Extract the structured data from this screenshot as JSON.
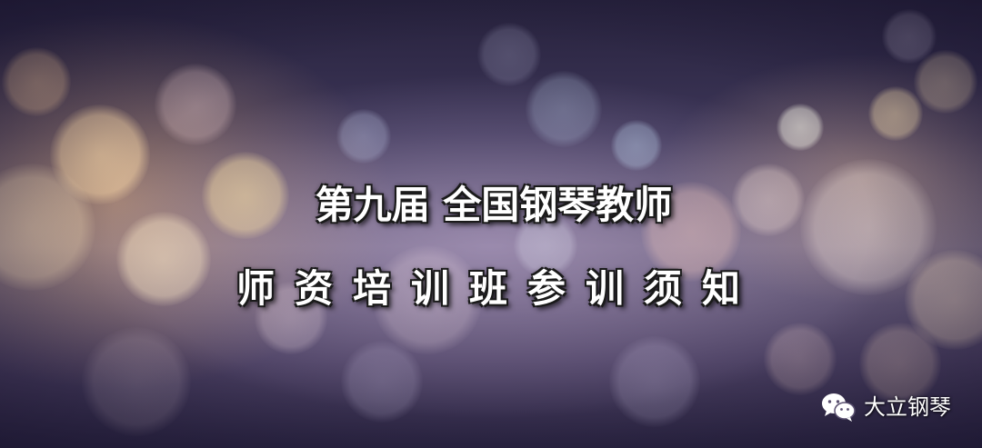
{
  "banner": {
    "title_line_1": "第九届 全国钢琴教师",
    "title_line_2": "师资培训班参训须知"
  },
  "watermark": {
    "icon": "wechat-icon",
    "label": "大立钢琴"
  },
  "colors": {
    "title_text": "#ffffff",
    "title_outline": "#1a1a1a",
    "background_dark": "#2a2441",
    "background_mid": "#6f6480"
  }
}
